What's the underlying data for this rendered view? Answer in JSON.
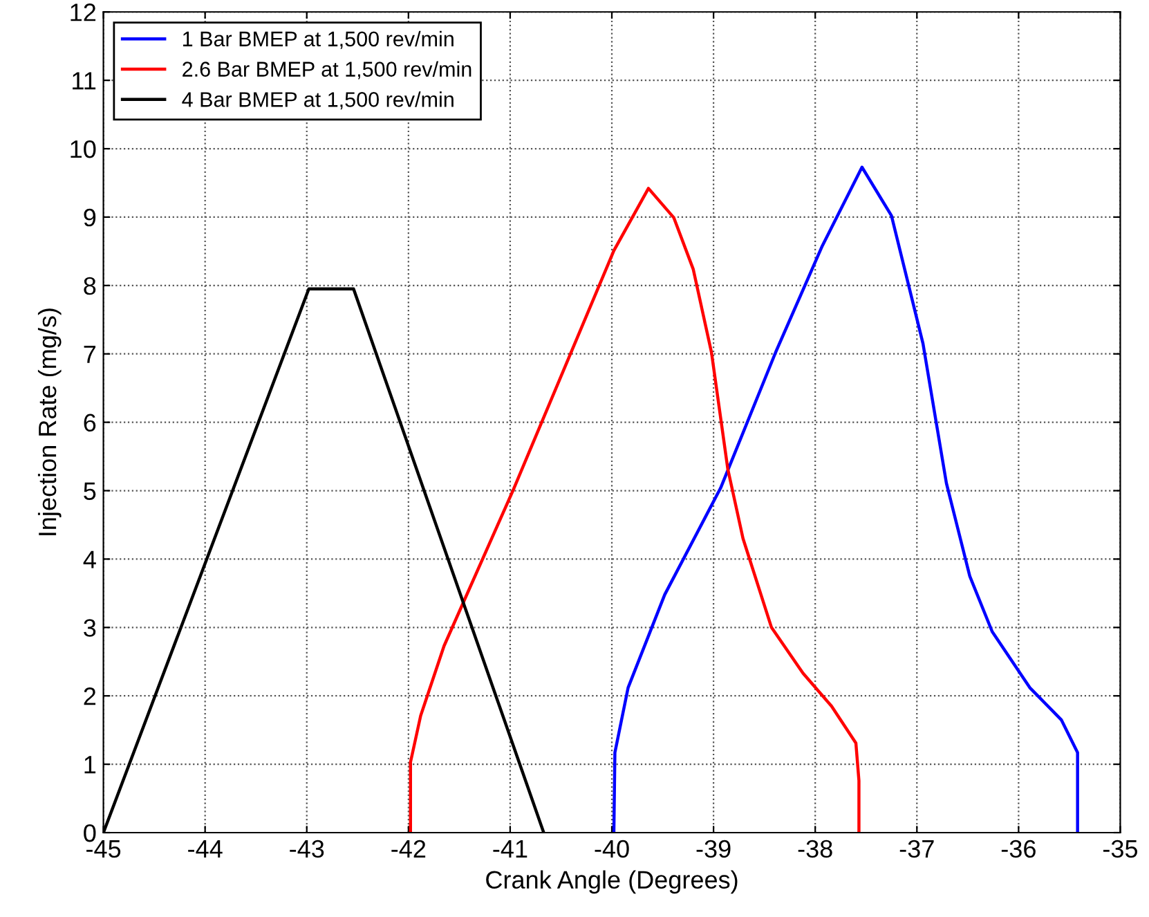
{
  "chart_data": {
    "type": "line",
    "xlabel": "Crank Angle (Degrees)",
    "ylabel": "Injection Rate (mg/s)",
    "xlim": [
      -45,
      -35
    ],
    "xticks": [
      -45,
      -44,
      -43,
      -42,
      -41,
      -40,
      -39,
      -38,
      -37,
      -36,
      -35
    ],
    "ylim": [
      0,
      12
    ],
    "yticks": [
      0,
      1,
      2,
      3,
      4,
      5,
      6,
      7,
      8,
      9,
      10,
      11,
      12
    ],
    "grid": true,
    "legend": "top left",
    "line_style": "solid",
    "marker": "none",
    "series": [
      {
        "name": "1 Bar BMEP at 1,500 rev/min",
        "color": "#0000ff",
        "x": [
          -39.98,
          -39.97,
          -39.84,
          -39.48,
          -38.93,
          -38.39,
          -37.93,
          -37.54,
          -37.25,
          -36.94,
          -36.71,
          -36.48,
          -36.26,
          -35.89,
          -35.58,
          -35.42,
          -35.42
        ],
        "values": [
          0,
          1.17,
          2.12,
          3.48,
          5.04,
          7.02,
          8.58,
          9.73,
          9.02,
          7.15,
          5.11,
          3.75,
          2.94,
          2.12,
          1.65,
          1.17,
          0
        ]
      },
      {
        "name": "2.6 Bar BMEP at 1,500 rev/min",
        "color": "#ff0000",
        "x": [
          -41.98,
          -41.98,
          -41.88,
          -41.65,
          -40.97,
          -39.98,
          -39.64,
          -39.39,
          -39.2,
          -39.02,
          -38.86,
          -38.71,
          -38.43,
          -38.12,
          -37.84,
          -37.6,
          -37.57,
          -37.57
        ],
        "values": [
          0,
          1.03,
          1.71,
          2.73,
          5.01,
          8.51,
          9.42,
          8.99,
          8.24,
          7.02,
          5.32,
          4.3,
          3.0,
          2.33,
          1.85,
          1.31,
          0.76,
          0
        ]
      },
      {
        "name": "4 Bar BMEP at 1,500 rev/min",
        "color": "#000000",
        "x": [
          -45,
          -42.98,
          -42.54,
          -40.67
        ],
        "values": [
          0,
          7.95,
          7.95,
          0
        ]
      }
    ]
  }
}
